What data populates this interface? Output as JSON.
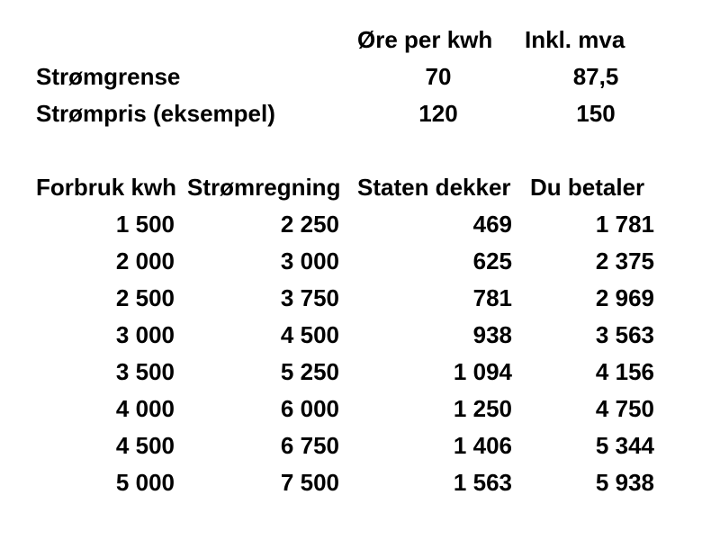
{
  "colors": {
    "background": "#ffffff",
    "text": "#000000"
  },
  "rates": {
    "headers": {
      "ore_per_kwh": "Øre per kwh",
      "inkl_mva": "Inkl. mva"
    },
    "rows": [
      {
        "label": "Strømgrense",
        "ore_per_kwh": "70",
        "inkl_mva": "87,5"
      },
      {
        "label": "Strømpris (eksempel)",
        "ore_per_kwh": "120",
        "inkl_mva": "150"
      }
    ]
  },
  "consumption": {
    "headers": [
      "Forbruk kwh",
      "Strømregning",
      "Staten dekker",
      "Du betaler"
    ],
    "rows": [
      [
        "1 500",
        "2 250",
        "469",
        "1 781"
      ],
      [
        "2 000",
        "3 000",
        "625",
        "2 375"
      ],
      [
        "2 500",
        "3 750",
        "781",
        "2 969"
      ],
      [
        "3 000",
        "4 500",
        "938",
        "3 563"
      ],
      [
        "3 500",
        "5 250",
        "1 094",
        "4 156"
      ],
      [
        "4 000",
        "6 000",
        "1 250",
        "4 750"
      ],
      [
        "4 500",
        "6 750",
        "1 406",
        "5 344"
      ],
      [
        "5 000",
        "7 500",
        "1 563",
        "5 938"
      ]
    ]
  }
}
